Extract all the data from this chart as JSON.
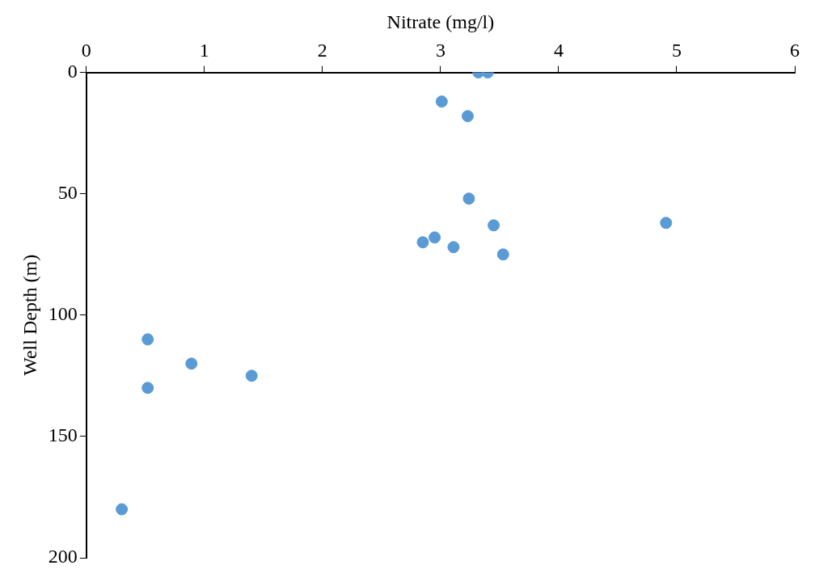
{
  "chart_data": {
    "type": "scatter",
    "xlabel": "Nitrate (mg/l)",
    "ylabel": "Well Depth (m)",
    "x": [
      3.32,
      3.4,
      3.01,
      3.23,
      3.24,
      3.45,
      4.91,
      2.95,
      2.85,
      3.11,
      3.53,
      0.52,
      0.89,
      1.4,
      0.52,
      0.3
    ],
    "values": [
      0,
      0,
      12,
      18,
      52,
      63,
      62,
      68,
      70,
      72,
      75,
      110,
      120,
      125,
      130,
      180
    ],
    "color": "#5b9bd5",
    "marker": "circle",
    "xlim": [
      0,
      6
    ],
    "xticks": [
      0,
      1,
      2,
      3,
      4,
      5,
      6
    ],
    "ylim": [
      200,
      0
    ],
    "yticks": [
      0,
      50,
      100,
      150,
      200
    ]
  }
}
